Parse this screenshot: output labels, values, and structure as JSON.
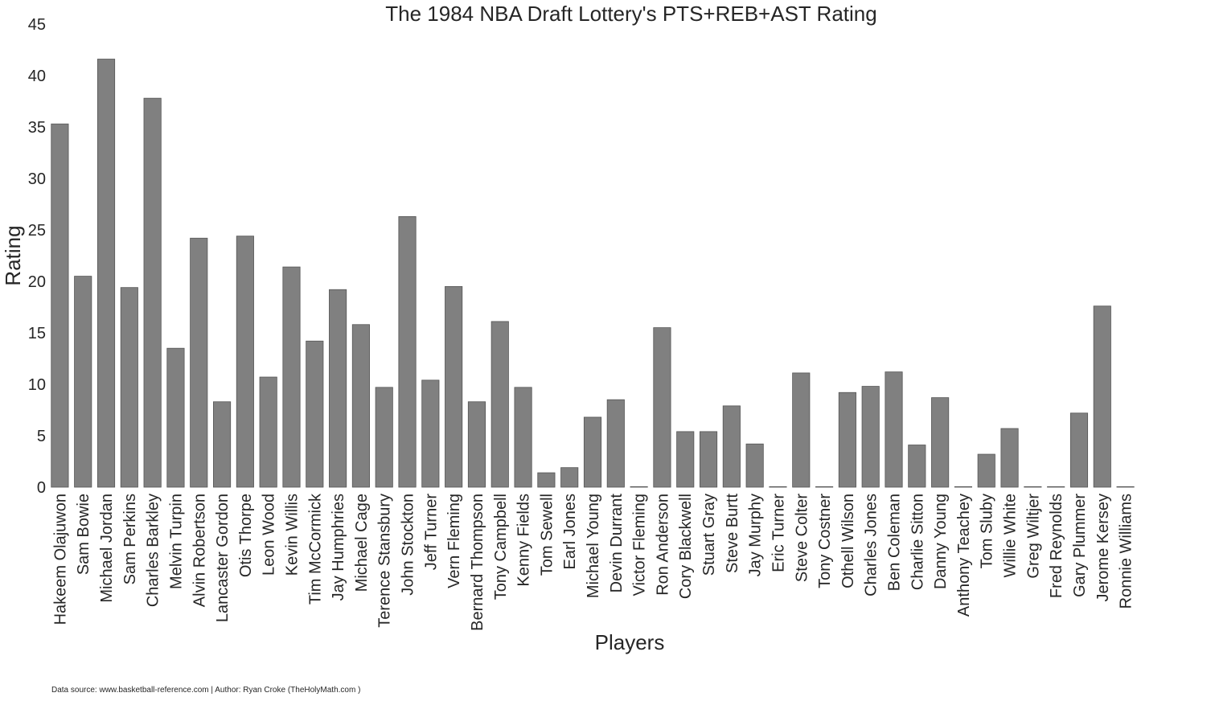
{
  "chart_data": {
    "type": "bar",
    "title": "The 1984 NBA Draft Lottery's PTS+REB+AST Rating",
    "xlabel": "Players",
    "ylabel": "Rating",
    "ylim": [
      0,
      45
    ],
    "yticks": [
      0,
      5,
      10,
      15,
      20,
      25,
      30,
      35,
      40,
      45
    ],
    "grid": false,
    "bar_color": "#808080",
    "bar_edge_color": "#555555",
    "categories": [
      "Hakeem Olajuwon",
      "Sam Bowie",
      "Michael Jordan",
      "Sam Perkins",
      "Charles Barkley",
      "Melvin Turpin",
      "Alvin Robertson",
      "Lancaster Gordon",
      "Otis Thorpe",
      "Leon Wood",
      "Kevin Willis",
      "Tim McCormick",
      "Jay Humphries",
      "Michael Cage",
      "Terence Stansbury",
      "John Stockton",
      "Jeff Turner",
      "Vern Fleming",
      "Bernard Thompson",
      "Tony Campbell",
      "Kenny Fields",
      "Tom Sewell",
      "Earl Jones",
      "Michael Young",
      "Devin Durrant",
      "Victor Fleming",
      "Ron Anderson",
      "Cory Blackwell",
      "Stuart Gray",
      "Steve Burtt",
      "Jay Murphy",
      "Eric Turner",
      "Steve Colter",
      "Tony Costner",
      "Othell Wilson",
      "Charles Jones",
      "Ben Coleman",
      "Charlie Sitton",
      "Danny Young",
      "Anthony Teachey",
      "Tom Sluby",
      "Willie White",
      "Greg Wiltjer",
      "Fred Reynolds",
      "Gary Plummer",
      "Jerome Kersey",
      "Ronnie Williams"
    ],
    "values": [
      35.3,
      20.5,
      41.6,
      19.4,
      37.8,
      13.5,
      24.2,
      8.3,
      24.4,
      10.7,
      21.4,
      14.2,
      19.2,
      15.8,
      9.7,
      26.3,
      10.4,
      19.5,
      8.3,
      16.1,
      9.7,
      1.4,
      1.9,
      6.8,
      8.5,
      0.0,
      15.5,
      5.4,
      5.4,
      7.9,
      4.2,
      0.0,
      11.1,
      0.0,
      9.2,
      9.8,
      11.2,
      4.1,
      8.7,
      0.0,
      3.2,
      5.7,
      0.0,
      0.0,
      7.2,
      17.6,
      0.0
    ]
  },
  "footer": "Data source: www.basketball-reference.com | Author: Ryan Croke (TheHolyMath.com )"
}
